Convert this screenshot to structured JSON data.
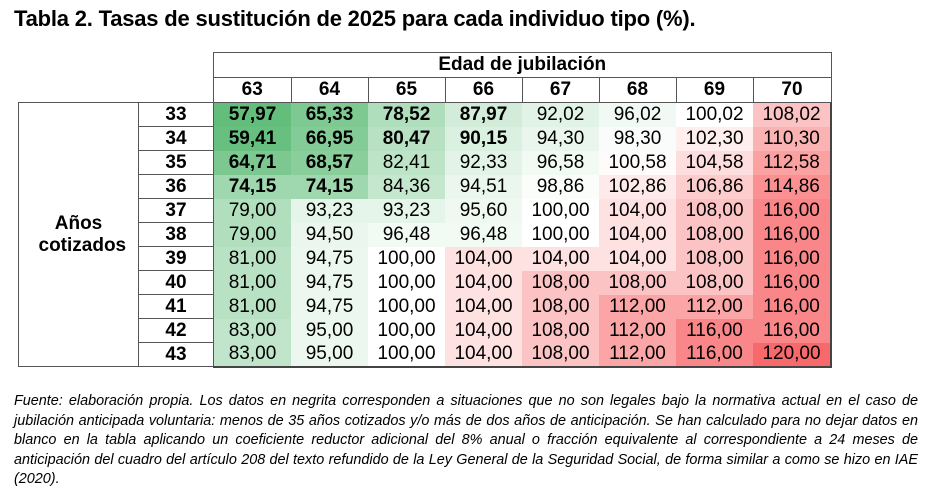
{
  "title": "Tabla 2. Tasas de sustitución de 2025 para cada individuo tipo (%).",
  "table": {
    "column_group_header": "Edad de jubilación",
    "row_group_header": "Años cotizados",
    "columns": [
      "63",
      "64",
      "65",
      "66",
      "67",
      "68",
      "69",
      "70"
    ],
    "rows": [
      {
        "years": "33",
        "values": [
          "57,97",
          "65,33",
          "78,52",
          "87,97",
          "92,02",
          "96,02",
          "100,02",
          "108,02"
        ],
        "bold": [
          true,
          true,
          true,
          true,
          false,
          false,
          false,
          false
        ]
      },
      {
        "years": "34",
        "values": [
          "59,41",
          "66,95",
          "80,47",
          "90,15",
          "94,30",
          "98,30",
          "102,30",
          "110,30"
        ],
        "bold": [
          true,
          true,
          true,
          true,
          false,
          false,
          false,
          false
        ]
      },
      {
        "years": "35",
        "values": [
          "64,71",
          "68,57",
          "82,41",
          "92,33",
          "96,58",
          "100,58",
          "104,58",
          "112,58"
        ],
        "bold": [
          true,
          true,
          false,
          false,
          false,
          false,
          false,
          false
        ]
      },
      {
        "years": "36",
        "values": [
          "74,15",
          "74,15",
          "84,36",
          "94,51",
          "98,86",
          "102,86",
          "106,86",
          "114,86"
        ],
        "bold": [
          true,
          true,
          false,
          false,
          false,
          false,
          false,
          false
        ]
      },
      {
        "years": "37",
        "values": [
          "79,00",
          "93,23",
          "93,23",
          "95,60",
          "100,00",
          "104,00",
          "108,00",
          "116,00"
        ],
        "bold": [
          false,
          false,
          false,
          false,
          false,
          false,
          false,
          false
        ]
      },
      {
        "years": "38",
        "values": [
          "79,00",
          "94,50",
          "96,48",
          "96,48",
          "100,00",
          "104,00",
          "108,00",
          "116,00"
        ],
        "bold": [
          false,
          false,
          false,
          false,
          false,
          false,
          false,
          false
        ]
      },
      {
        "years": "39",
        "values": [
          "81,00",
          "94,75",
          "100,00",
          "104,00",
          "104,00",
          "104,00",
          "108,00",
          "116,00"
        ],
        "bold": [
          false,
          false,
          false,
          false,
          false,
          false,
          false,
          false
        ]
      },
      {
        "years": "40",
        "values": [
          "81,00",
          "94,75",
          "100,00",
          "104,00",
          "108,00",
          "108,00",
          "108,00",
          "116,00"
        ],
        "bold": [
          false,
          false,
          false,
          false,
          false,
          false,
          false,
          false
        ]
      },
      {
        "years": "41",
        "values": [
          "81,00",
          "94,75",
          "100,00",
          "104,00",
          "108,00",
          "112,00",
          "112,00",
          "116,00"
        ],
        "bold": [
          false,
          false,
          false,
          false,
          false,
          false,
          false,
          false
        ]
      },
      {
        "years": "42",
        "values": [
          "83,00",
          "95,00",
          "100,00",
          "104,00",
          "108,00",
          "112,00",
          "116,00",
          "116,00"
        ],
        "bold": [
          false,
          false,
          false,
          false,
          false,
          false,
          false,
          false
        ]
      },
      {
        "years": "43",
        "values": [
          "83,00",
          "95,00",
          "100,00",
          "104,00",
          "108,00",
          "112,00",
          "116,00",
          "120,00"
        ],
        "bold": [
          false,
          false,
          false,
          false,
          false,
          false,
          false,
          false
        ]
      }
    ],
    "color_scale": {
      "min_color": "#63be7b",
      "mid_color": "#ffffff",
      "max_color": "#f8696b",
      "min": 57.97,
      "mid": 100,
      "max": 120
    }
  },
  "note": "Fuente: elaboración propia. Los datos en negrita corresponden a situaciones que no son legales bajo la normativa actual en el caso de jubilación anticipada voluntaria: menos de 35 años cotizados y/o más de dos años de anticipación. Se han calculado para no dejar datos en blanco en la tabla aplicando un coeficiente reductor adicional del 8% anual o fracción equivalente al correspondiente a 24 meses de anticipación del cuadro del artículo 208 del texto refundido de la Ley General de la Seguridad Social, de forma similar a como se hizo en IAE (2020)."
}
